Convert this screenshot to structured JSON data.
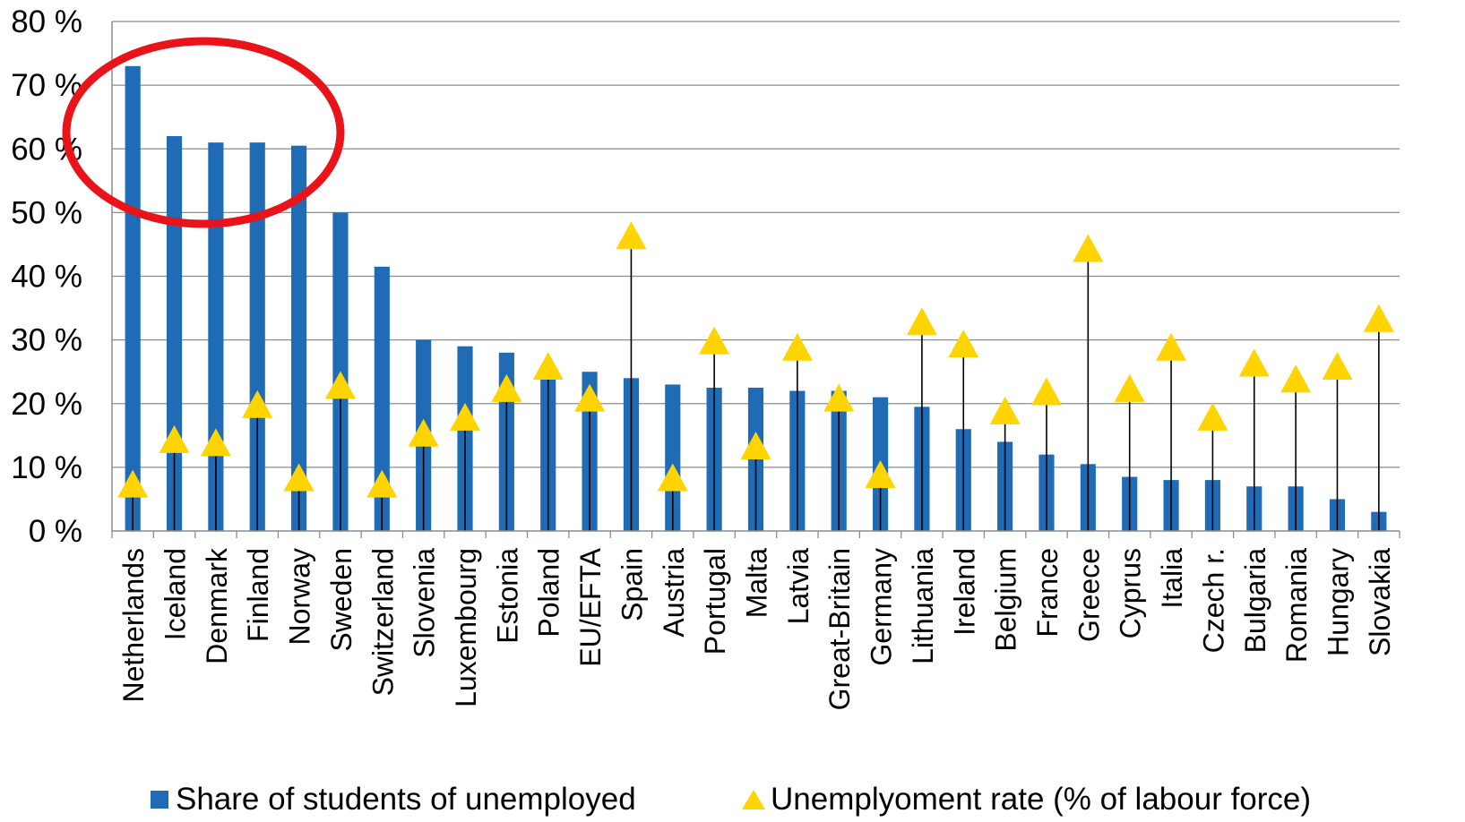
{
  "chart_data": {
    "type": "bar",
    "categories": [
      "Netherlands",
      "Iceland",
      "Denmark",
      "Finland",
      "Norway",
      "Sweden",
      "Switzerland",
      "Slovenia",
      "Luxembourg",
      "Estonia",
      "Poland",
      "EU/EFTA",
      "Spain",
      "Austria",
      "Portugal",
      "Malta",
      "Latvia",
      "Great-Britain",
      "Germany",
      "Lithuania",
      "Ireland",
      "Belgium",
      "France",
      "Greece",
      "Cyprus",
      "Italia",
      "Czech r.",
      "Bulgaria",
      "Romania",
      "Hungary",
      "Slovakia"
    ],
    "series": [
      {
        "name": "Share of students of unemployed",
        "type": "bar",
        "color": "#1F6BB5",
        "values": [
          73,
          62,
          61,
          61,
          60.5,
          50,
          41.5,
          30,
          29,
          28,
          25,
          25,
          24,
          23,
          22.5,
          22.5,
          22,
          22,
          21,
          19.5,
          16,
          14,
          12,
          10.5,
          8.5,
          8,
          8,
          7,
          7,
          5,
          3
        ]
      },
      {
        "name": "Unemplyoment rate (% of labour force)",
        "type": "scatter",
        "marker": "triangle",
        "color": "#FFD400",
        "values": [
          7,
          14,
          13.5,
          19.5,
          8,
          22.5,
          7,
          15,
          17.5,
          22,
          25.5,
          20.5,
          46,
          8,
          29.5,
          13,
          28.5,
          20.5,
          8.5,
          32.5,
          29,
          18.5,
          21.5,
          44,
          22,
          28.5,
          17.5,
          26,
          23.5,
          25.5,
          33
        ]
      }
    ],
    "y_ticks": [
      "0 %",
      "10 %",
      "20 %",
      "30 %",
      "40 %",
      "50 %",
      "60 %",
      "70 %",
      "80 %"
    ],
    "ylim": [
      0,
      80
    ],
    "grid": true,
    "legend_position": "bottom",
    "highlight": {
      "shape": "ellipse",
      "color": "#E8141A",
      "covers": [
        "Netherlands",
        "Iceland",
        "Denmark",
        "Finland",
        "Norway"
      ]
    },
    "title": "",
    "xlabel": "",
    "ylabel": ""
  },
  "legend": {
    "items": [
      {
        "label": "Share of students of unemployed",
        "color": "#1F6BB5",
        "icon": "square-icon"
      },
      {
        "label": "Unemplyoment rate (% of labour force)",
        "color": "#FFD400",
        "icon": "triangle-icon"
      }
    ]
  }
}
